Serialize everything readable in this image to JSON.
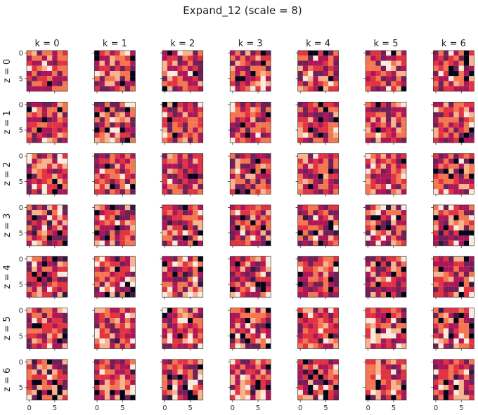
{
  "chart_data": {
    "type": "heatmap",
    "title": "Expand_12 (scale = 8)",
    "col_titles": [
      "k = 0",
      "k = 1",
      "k = 2",
      "k = 3",
      "k = 4",
      "k = 5",
      "k = 6"
    ],
    "row_labels": [
      "z = 0",
      "z = 1",
      "z = 2",
      "z = 3",
      "z = 4",
      "z = 5",
      "z = 6"
    ],
    "grid_size": 8,
    "x_ticks": [
      {
        "value": 0,
        "label": "0"
      },
      {
        "value": 5,
        "label": "5"
      }
    ],
    "y_ticks": [
      {
        "value": 0,
        "label": "0"
      },
      {
        "value": 5,
        "label": "5"
      }
    ],
    "colormap": [
      "#03051a",
      "#36193e",
      "#701f57",
      "#ad1759",
      "#e13342",
      "#f37651",
      "#f6b48f",
      "#faebdd"
    ],
    "value_range": [
      0,
      1
    ],
    "grid": false
  }
}
